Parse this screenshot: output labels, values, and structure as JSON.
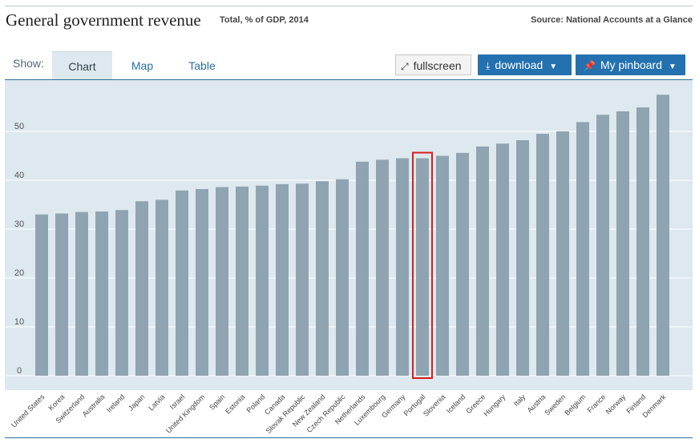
{
  "header": {
    "title": "General government revenue",
    "subtitle": "Total, % of GDP, 2014",
    "source": "Source: National Accounts at a Glance"
  },
  "toolbar": {
    "show_label": "Show:",
    "tabs": [
      {
        "label": "Chart",
        "active": true
      },
      {
        "label": "Map",
        "active": false
      },
      {
        "label": "Table",
        "active": false
      }
    ],
    "fullscreen_label": "fullscreen",
    "download_label": "download",
    "pinboard_label": "My pinboard"
  },
  "colors": {
    "bar": "#8fa4b1",
    "highlight_outline": "#d81e1e",
    "plot_background": "#dde8ef",
    "button_blue": "#2471b0"
  },
  "chart_data": {
    "type": "bar",
    "title": "General government revenue",
    "subtitle": "Total, % of GDP, 2014",
    "categories": [
      "United States",
      "Korea",
      "Switzerland",
      "Australia",
      "Ireland",
      "Japan",
      "Latvia",
      "Israel",
      "United Kingdom",
      "Spain",
      "Estonia",
      "Poland",
      "Canada",
      "Slovak Republic",
      "New Zealand",
      "Czech Republic",
      "Netherlands",
      "Luxembourg",
      "Germany",
      "Portugal",
      "Slovenia",
      "Iceland",
      "Greece",
      "Hungary",
      "Italy",
      "Austria",
      "Sweden",
      "Belgium",
      "France",
      "Norway",
      "Finland",
      "Denmark"
    ],
    "values": [
      33.0,
      33.2,
      33.5,
      33.6,
      33.9,
      35.7,
      36.0,
      37.9,
      38.2,
      38.6,
      38.7,
      38.9,
      39.2,
      39.3,
      39.8,
      40.2,
      43.8,
      44.2,
      44.5,
      44.5,
      45.0,
      45.6,
      46.9,
      47.5,
      48.2,
      49.5,
      50.0,
      51.9,
      53.4,
      54.1,
      54.9,
      57.5
    ],
    "highlight": "Portugal",
    "yticks": [
      0,
      10,
      20,
      30,
      40,
      50
    ],
    "ylim": [
      0,
      60
    ],
    "grid": true,
    "legend": "none"
  }
}
